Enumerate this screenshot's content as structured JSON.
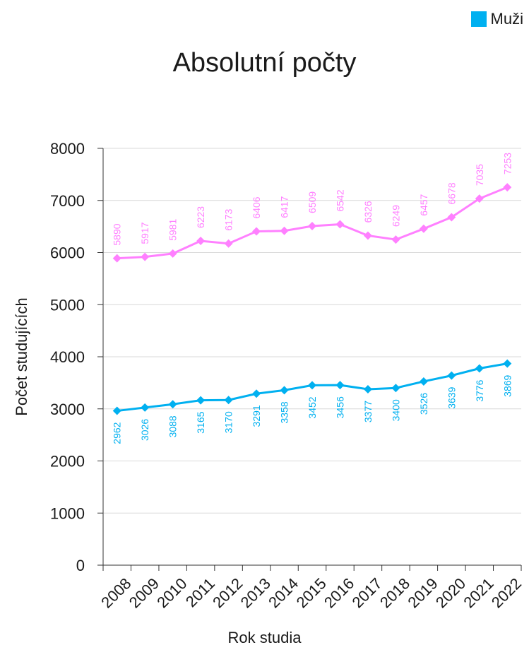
{
  "legend": {
    "label": "Muži",
    "color": "#00b0f0"
  },
  "chart_data": {
    "type": "line",
    "title": "Absolutní počty",
    "xlabel": "Rok studia",
    "ylabel": "Počet studujících",
    "categories": [
      "2008",
      "2009",
      "2010",
      "2011",
      "2012",
      "2013",
      "2014",
      "2015",
      "2016",
      "2017",
      "2018",
      "2019",
      "2020",
      "2021",
      "2022"
    ],
    "ylim": [
      0,
      8000
    ],
    "yticks": [
      0,
      1000,
      2000,
      3000,
      4000,
      5000,
      6000,
      7000,
      8000
    ],
    "grid": true,
    "legend_position": "top-right",
    "series": [
      {
        "color": "#ff80ff",
        "values": [
          5890,
          5917,
          5981,
          6223,
          6173,
          6406,
          6417,
          6509,
          6542,
          6326,
          6249,
          6457,
          6678,
          7035,
          7253
        ]
      },
      {
        "name": "Muži",
        "color": "#00b0f0",
        "values": [
          2962,
          3026,
          3088,
          3165,
          3170,
          3291,
          3358,
          3452,
          3456,
          3377,
          3400,
          3526,
          3639,
          3776,
          3869
        ]
      }
    ]
  }
}
